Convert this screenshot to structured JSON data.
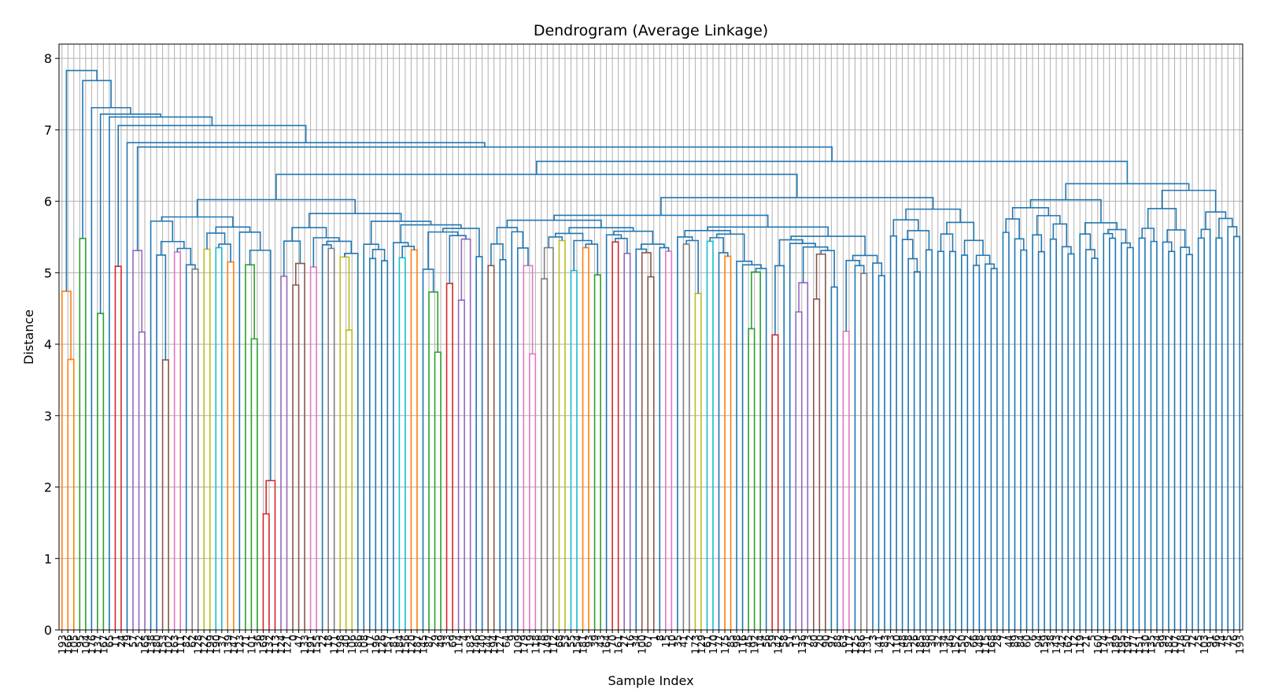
{
  "chart_data": {
    "type": "dendrogram",
    "title": "Dendrogram (Average Linkage)",
    "xlabel": "Sample Index",
    "ylabel": "Distance",
    "ylim": [
      0,
      8.2
    ],
    "yticks": [
      0,
      1,
      2,
      3,
      4,
      5,
      6,
      7,
      8
    ],
    "grid": true,
    "leaf_count": 200,
    "leaf_labels_sample": [
      "193",
      "166",
      "105",
      "95",
      "104",
      "176",
      "137",
      "167",
      "65",
      "11",
      "24",
      "79",
      "57",
      "52",
      "165",
      "138",
      "180",
      "153",
      "102",
      "163",
      "111",
      "82",
      "62",
      "128",
      "122",
      "199",
      "190",
      "37",
      "139",
      "147",
      "123",
      "71",
      "101",
      "36",
      "169",
      "132",
      "113",
      "124",
      "121",
      "0",
      "47",
      "133",
      "191",
      "155",
      "22",
      "18",
      "171",
      "198",
      "40",
      "106",
      "86",
      "108",
      "17",
      "196",
      "126",
      "157",
      "81",
      "184",
      "156",
      "120",
      "187",
      "145",
      "87",
      "29",
      "49",
      "33",
      "69",
      "114",
      "4",
      "183",
      "146",
      "140",
      "144",
      "194",
      "127",
      "64",
      "9",
      "109",
      "179",
      "19",
      "118",
      "78",
      "149",
      "112",
      "68",
      "53",
      "55",
      "154",
      "181",
      "93",
      "39",
      "43",
      "164",
      "70",
      "161",
      "27",
      "16",
      "34",
      "100",
      "67",
      "1",
      "8",
      "15",
      "10",
      "35",
      "41",
      "2",
      "173",
      "129",
      "61",
      "170",
      "77",
      "175",
      "85",
      "98",
      "116",
      "45",
      "192",
      "14",
      "56",
      "59",
      "142",
      "58",
      "51",
      "13",
      "136",
      "73",
      "80",
      "20",
      "90",
      "97",
      "88",
      "63",
      "117",
      "125",
      "186",
      "131",
      "3",
      "141",
      "83",
      "23",
      "110",
      "48",
      "158",
      "26",
      "185",
      "188",
      "30",
      "32",
      "134",
      "46",
      "152",
      "150",
      "92",
      "66",
      "148",
      "115",
      "168",
      "28",
      "7",
      "44",
      "89",
      "84",
      "60",
      "6",
      "94",
      "159",
      "38",
      "143",
      "42",
      "162",
      "12",
      "119",
      "21",
      "5",
      "160",
      "174",
      "31",
      "189",
      "195",
      "197",
      "177",
      "151",
      "130",
      "135",
      "54",
      "99",
      "182",
      "107",
      "178",
      "50",
      "72",
      "25",
      "103",
      "91",
      "96",
      "74",
      "75",
      "76"
    ],
    "colors": {
      "above_threshold": "#1f77b4",
      "clusters": [
        "#ff7f0e",
        "#2ca02c",
        "#d62728",
        "#9467bd",
        "#8c564b",
        "#e377c2",
        "#7f7f7f",
        "#bcbd22",
        "#17becf"
      ]
    },
    "top_merges": [
      {
        "height": 7.83
      },
      {
        "height": 7.69
      },
      {
        "height": 7.31
      },
      {
        "height": 7.22
      },
      {
        "height": 7.18
      },
      {
        "height": 7.06
      },
      {
        "height": 6.82
      },
      {
        "height": 6.76
      }
    ],
    "colored_clusters": [
      {
        "color": "#ff7f0e",
        "height": 4.74
      },
      {
        "color": "#2ca02c",
        "height": 5.48
      },
      {
        "color": "#2ca02c",
        "height": 4.43
      },
      {
        "color": "#d62728",
        "height": 5.09
      },
      {
        "color": "#9467bd",
        "height": 5.31
      },
      {
        "color": "#8c564b",
        "height": 3.78
      },
      {
        "color": "#e377c2",
        "height": 5.29
      },
      {
        "color": "#7f7f7f",
        "height": 5.05
      },
      {
        "color": "#bcbd22",
        "height": 5.33
      },
      {
        "color": "#17becf",
        "height": 5.35
      },
      {
        "color": "#ff7f0e",
        "height": 5.15
      },
      {
        "color": "#2ca02c",
        "height": 5.11
      },
      {
        "color": "#d62728",
        "height": 2.09
      },
      {
        "color": "#9467bd",
        "height": 4.95
      },
      {
        "color": "#8c564b",
        "height": 5.13
      },
      {
        "color": "#e377c2",
        "height": 5.08
      },
      {
        "color": "#7f7f7f",
        "height": 5.34
      },
      {
        "color": "#bcbd22",
        "height": 5.22
      },
      {
        "color": "#17becf",
        "height": 5.21
      },
      {
        "color": "#ff7f0e",
        "height": 5.32
      },
      {
        "color": "#2ca02c",
        "height": 4.73
      },
      {
        "color": "#d62728",
        "height": 4.85
      },
      {
        "color": "#9467bd",
        "height": 5.47
      },
      {
        "color": "#8c564b",
        "height": 5.1
      },
      {
        "color": "#e377c2",
        "height": 5.1
      },
      {
        "color": "#7f7f7f",
        "height": 5.35
      },
      {
        "color": "#bcbd22",
        "height": 5.45
      },
      {
        "color": "#17becf",
        "height": 5.03
      },
      {
        "color": "#ff7f0e",
        "height": 5.35
      },
      {
        "color": "#2ca02c",
        "height": 4.97
      },
      {
        "color": "#d62728",
        "height": 5.43
      },
      {
        "color": "#9467bd",
        "height": 5.27
      },
      {
        "color": "#8c564b",
        "height": 5.28
      },
      {
        "color": "#e377c2",
        "height": 5.3
      },
      {
        "color": "#7f7f7f",
        "height": 5.4
      },
      {
        "color": "#bcbd22",
        "height": 4.71
      },
      {
        "color": "#17becf",
        "height": 5.44
      },
      {
        "color": "#ff7f0e",
        "height": 5.23
      },
      {
        "color": "#2ca02c",
        "height": 5.01
      },
      {
        "color": "#d62728",
        "height": 4.13
      },
      {
        "color": "#9467bd",
        "height": 4.86
      },
      {
        "color": "#8c564b",
        "height": 5.26
      },
      {
        "color": "#e377c2",
        "height": 4.18
      },
      {
        "color": "#7f7f7f",
        "height": 4.99
      }
    ]
  }
}
